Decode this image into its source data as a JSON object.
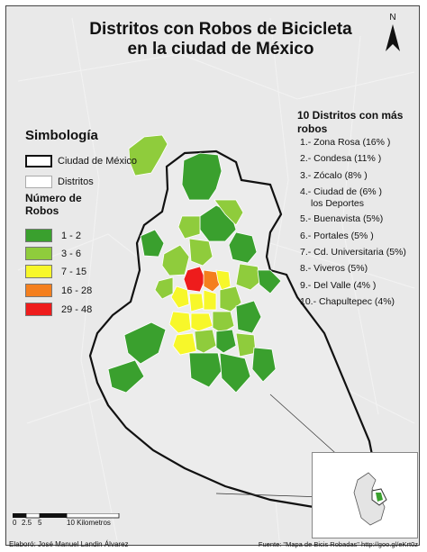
{
  "title_line1": "Distritos con Robos de Bicicleta",
  "title_line2": "en la ciudad de México",
  "north_label": "N",
  "legend": {
    "title": "Simbología",
    "city_label": "Ciudad de México",
    "district_label": "Distritos",
    "classes_title": "Número de Robos",
    "classes": [
      {
        "label": "1 - 2",
        "color": "#3aa02e"
      },
      {
        "label": "3 - 6",
        "color": "#8fcc3c"
      },
      {
        "label": "7 - 15",
        "color": "#f7f72a"
      },
      {
        "label": "16 - 28",
        "color": "#f47f1e"
      },
      {
        "label": "29 - 48",
        "color": "#ee1c1c"
      }
    ]
  },
  "top10": {
    "title": "10 Distritos con más robos",
    "items": [
      "1.- Zona Rosa (16% )",
      "2.- Condesa (11% )",
      "3.- Zócalo (8% )",
      "4.- Ciudad de (6% )",
      "5.- Buenavista (5%)",
      "6.- Portales (5% )",
      "7.- Cd. Universitaria (5%)",
      "8.-  Viveros (5%)",
      "9.- Del Valle (4% )",
      "10.- Chapultepec (4%)"
    ],
    "item4_extra": "los Deportes"
  },
  "scale": {
    "ticks": [
      "0",
      "2.5",
      "5",
      "10 Kilometros"
    ]
  },
  "credit_left": "Elaboró: José Manuel Landin Álvarez",
  "credit_right": "Fuente: \"Mapa de Bicis Robadas\" http://goo.gl/eKrt0z",
  "colors": {
    "background": "#e8e8e8",
    "outline": "#111111",
    "district_line": "#ffffff"
  }
}
